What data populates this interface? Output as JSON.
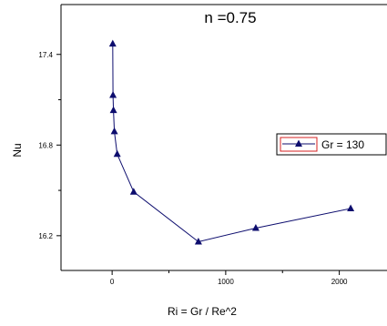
{
  "chart_data": {
    "type": "scatter",
    "title": "n =0.75",
    "xlabel": "Ri = Gr / Re^2",
    "ylabel": "Nu",
    "xlim": [
      -450,
      2420
    ],
    "ylim": [
      15.97,
      17.73
    ],
    "x_ticks": [
      0,
      1000,
      2000
    ],
    "x_tick_labels": [
      "0",
      "1000",
      "2000"
    ],
    "y_ticks": [
      16.2,
      16.8,
      17.4
    ],
    "y_tick_labels": [
      "16.2",
      "16.8",
      "17.4"
    ],
    "grid": false,
    "legend_position": "right",
    "series": [
      {
        "name": "Gr = 130",
        "color": "#0d0d6e",
        "marker": "triangle",
        "line": true,
        "points": [
          {
            "x": 5,
            "y": 17.47
          },
          {
            "x": 8,
            "y": 17.13
          },
          {
            "x": 12,
            "y": 17.03
          },
          {
            "x": 20,
            "y": 16.89
          },
          {
            "x": 45,
            "y": 16.74
          },
          {
            "x": 190,
            "y": 16.49
          },
          {
            "x": 760,
            "y": 16.16
          },
          {
            "x": 1265,
            "y": 16.25
          },
          {
            "x": 2100,
            "y": 16.38
          }
        ]
      }
    ]
  }
}
